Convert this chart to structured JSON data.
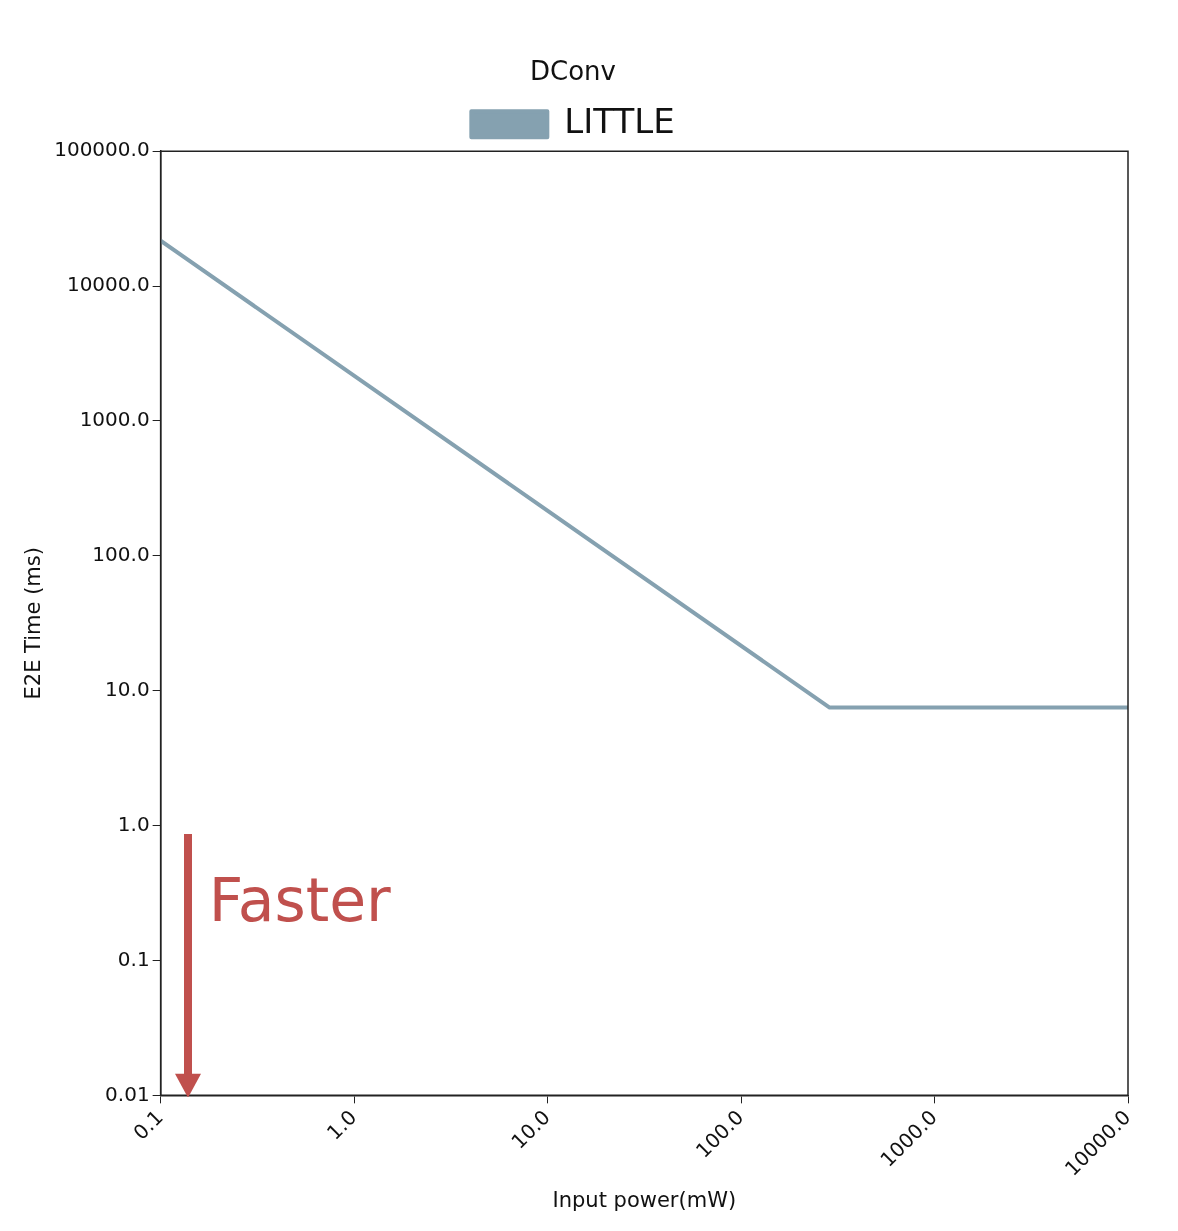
{
  "chart_data": {
    "type": "line",
    "title": "DConv",
    "xlabel": "Input power(mW)",
    "ylabel": "E2E Time (ms)",
    "x": [
      0.1,
      287,
      10000
    ],
    "series": [
      {
        "name": "LITTLE",
        "color": "#85a1b0",
        "values": [
          21700,
          7.5,
          7.5
        ]
      }
    ],
    "log": "xy",
    "xlim": [
      0.1,
      10000
    ],
    "ylim": [
      0.01,
      100000
    ],
    "xticks": [
      0.1,
      {
        "value": 1,
        "label": "1.0"
      },
      {
        "value": 10,
        "label": "10.0"
      },
      {
        "value": 100,
        "label": "100.0"
      },
      {
        "value": 1000,
        "label": "1000.0"
      },
      {
        "value": 10000,
        "label": "10000.0"
      }
    ],
    "yticks": [
      0.01,
      0.1,
      {
        "value": 1,
        "label": "1.0"
      },
      {
        "value": 10,
        "label": "10.0"
      },
      {
        "value": 100,
        "label": "100.0"
      },
      {
        "value": 1000,
        "label": "1000.0"
      },
      {
        "value": 10000,
        "label": "10000.0"
      },
      {
        "value": 100000,
        "label": "100000.0"
      }
    ],
    "grid": false,
    "legend": "top",
    "marker": "none",
    "line_style": "solid",
    "annotations": [
      "Faster"
    ]
  }
}
